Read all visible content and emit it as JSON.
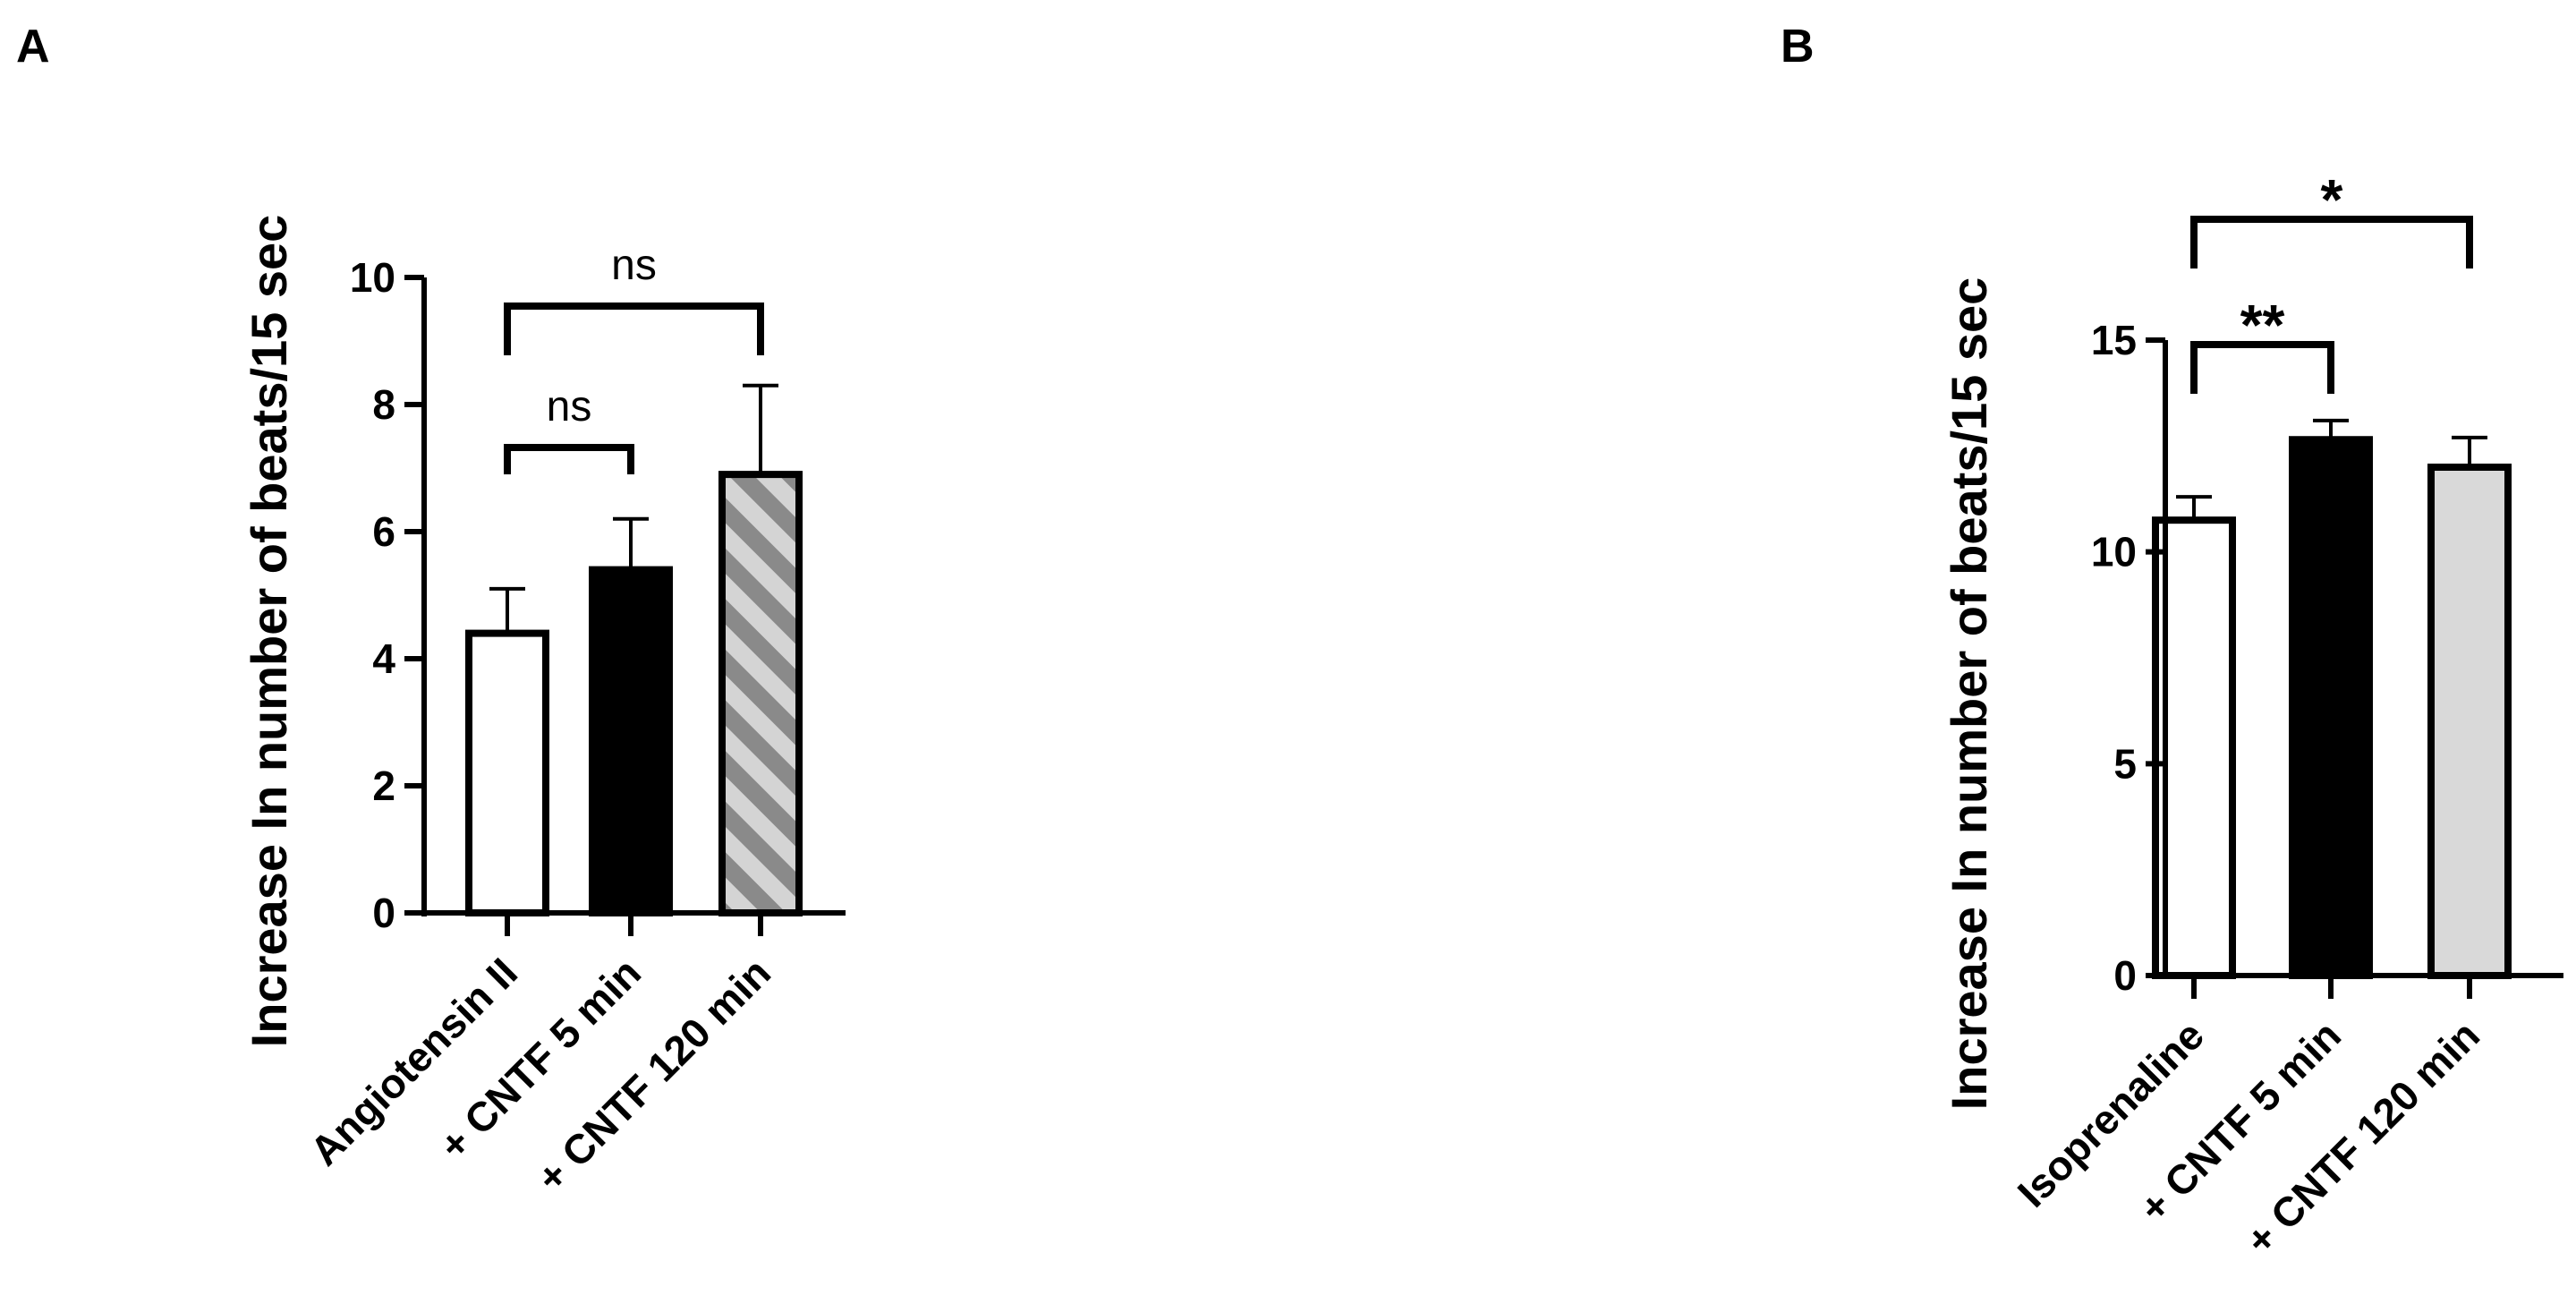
{
  "panels": [
    {
      "label": "A",
      "chart_data": {
        "type": "bar",
        "title": "",
        "xlabel": "",
        "ylabel": "Increase In number of beats/15 sec",
        "ylim": [
          0,
          10
        ],
        "yticks": [
          0,
          2,
          4,
          6,
          8,
          10
        ],
        "categories": [
          "Angiotensin II",
          "+ CNTF 5 min",
          "+ CNTF 120 min"
        ],
        "values": [
          4.4,
          5.4,
          6.9
        ],
        "errors": [
          0.7,
          0.8,
          1.4
        ],
        "bar_fills": [
          "open",
          "solid",
          "hatched"
        ],
        "significance": [
          {
            "from": 0,
            "to": 1,
            "label": "ns"
          },
          {
            "from": 0,
            "to": 2,
            "label": "ns"
          }
        ],
        "grid": false
      }
    },
    {
      "label": "B",
      "chart_data": {
        "type": "bar",
        "title": "",
        "xlabel": "",
        "ylabel": "Increase In number of beats/15 sec",
        "ylim": [
          0,
          15
        ],
        "yticks": [
          0,
          5,
          10,
          15
        ],
        "categories": [
          "Isoprenaline",
          "+ CNTF 5 min",
          "+ CNTF 120 min"
        ],
        "values": [
          10.75,
          12.65,
          12.0
        ],
        "errors": [
          0.55,
          0.45,
          0.7
        ],
        "bar_fills": [
          "open",
          "solid",
          "light-gray"
        ],
        "significance": [
          {
            "from": 0,
            "to": 1,
            "label": "**"
          },
          {
            "from": 0,
            "to": 2,
            "label": "*"
          }
        ],
        "grid": false
      }
    }
  ],
  "colors": {
    "axis": "#000000",
    "solid_bar": "#000000",
    "open_bar": "#ffffff",
    "hatch_light": "#d4d4d4",
    "hatch_dark": "#8a8a8a",
    "light_gray_bar": "#d9d9d9"
  }
}
